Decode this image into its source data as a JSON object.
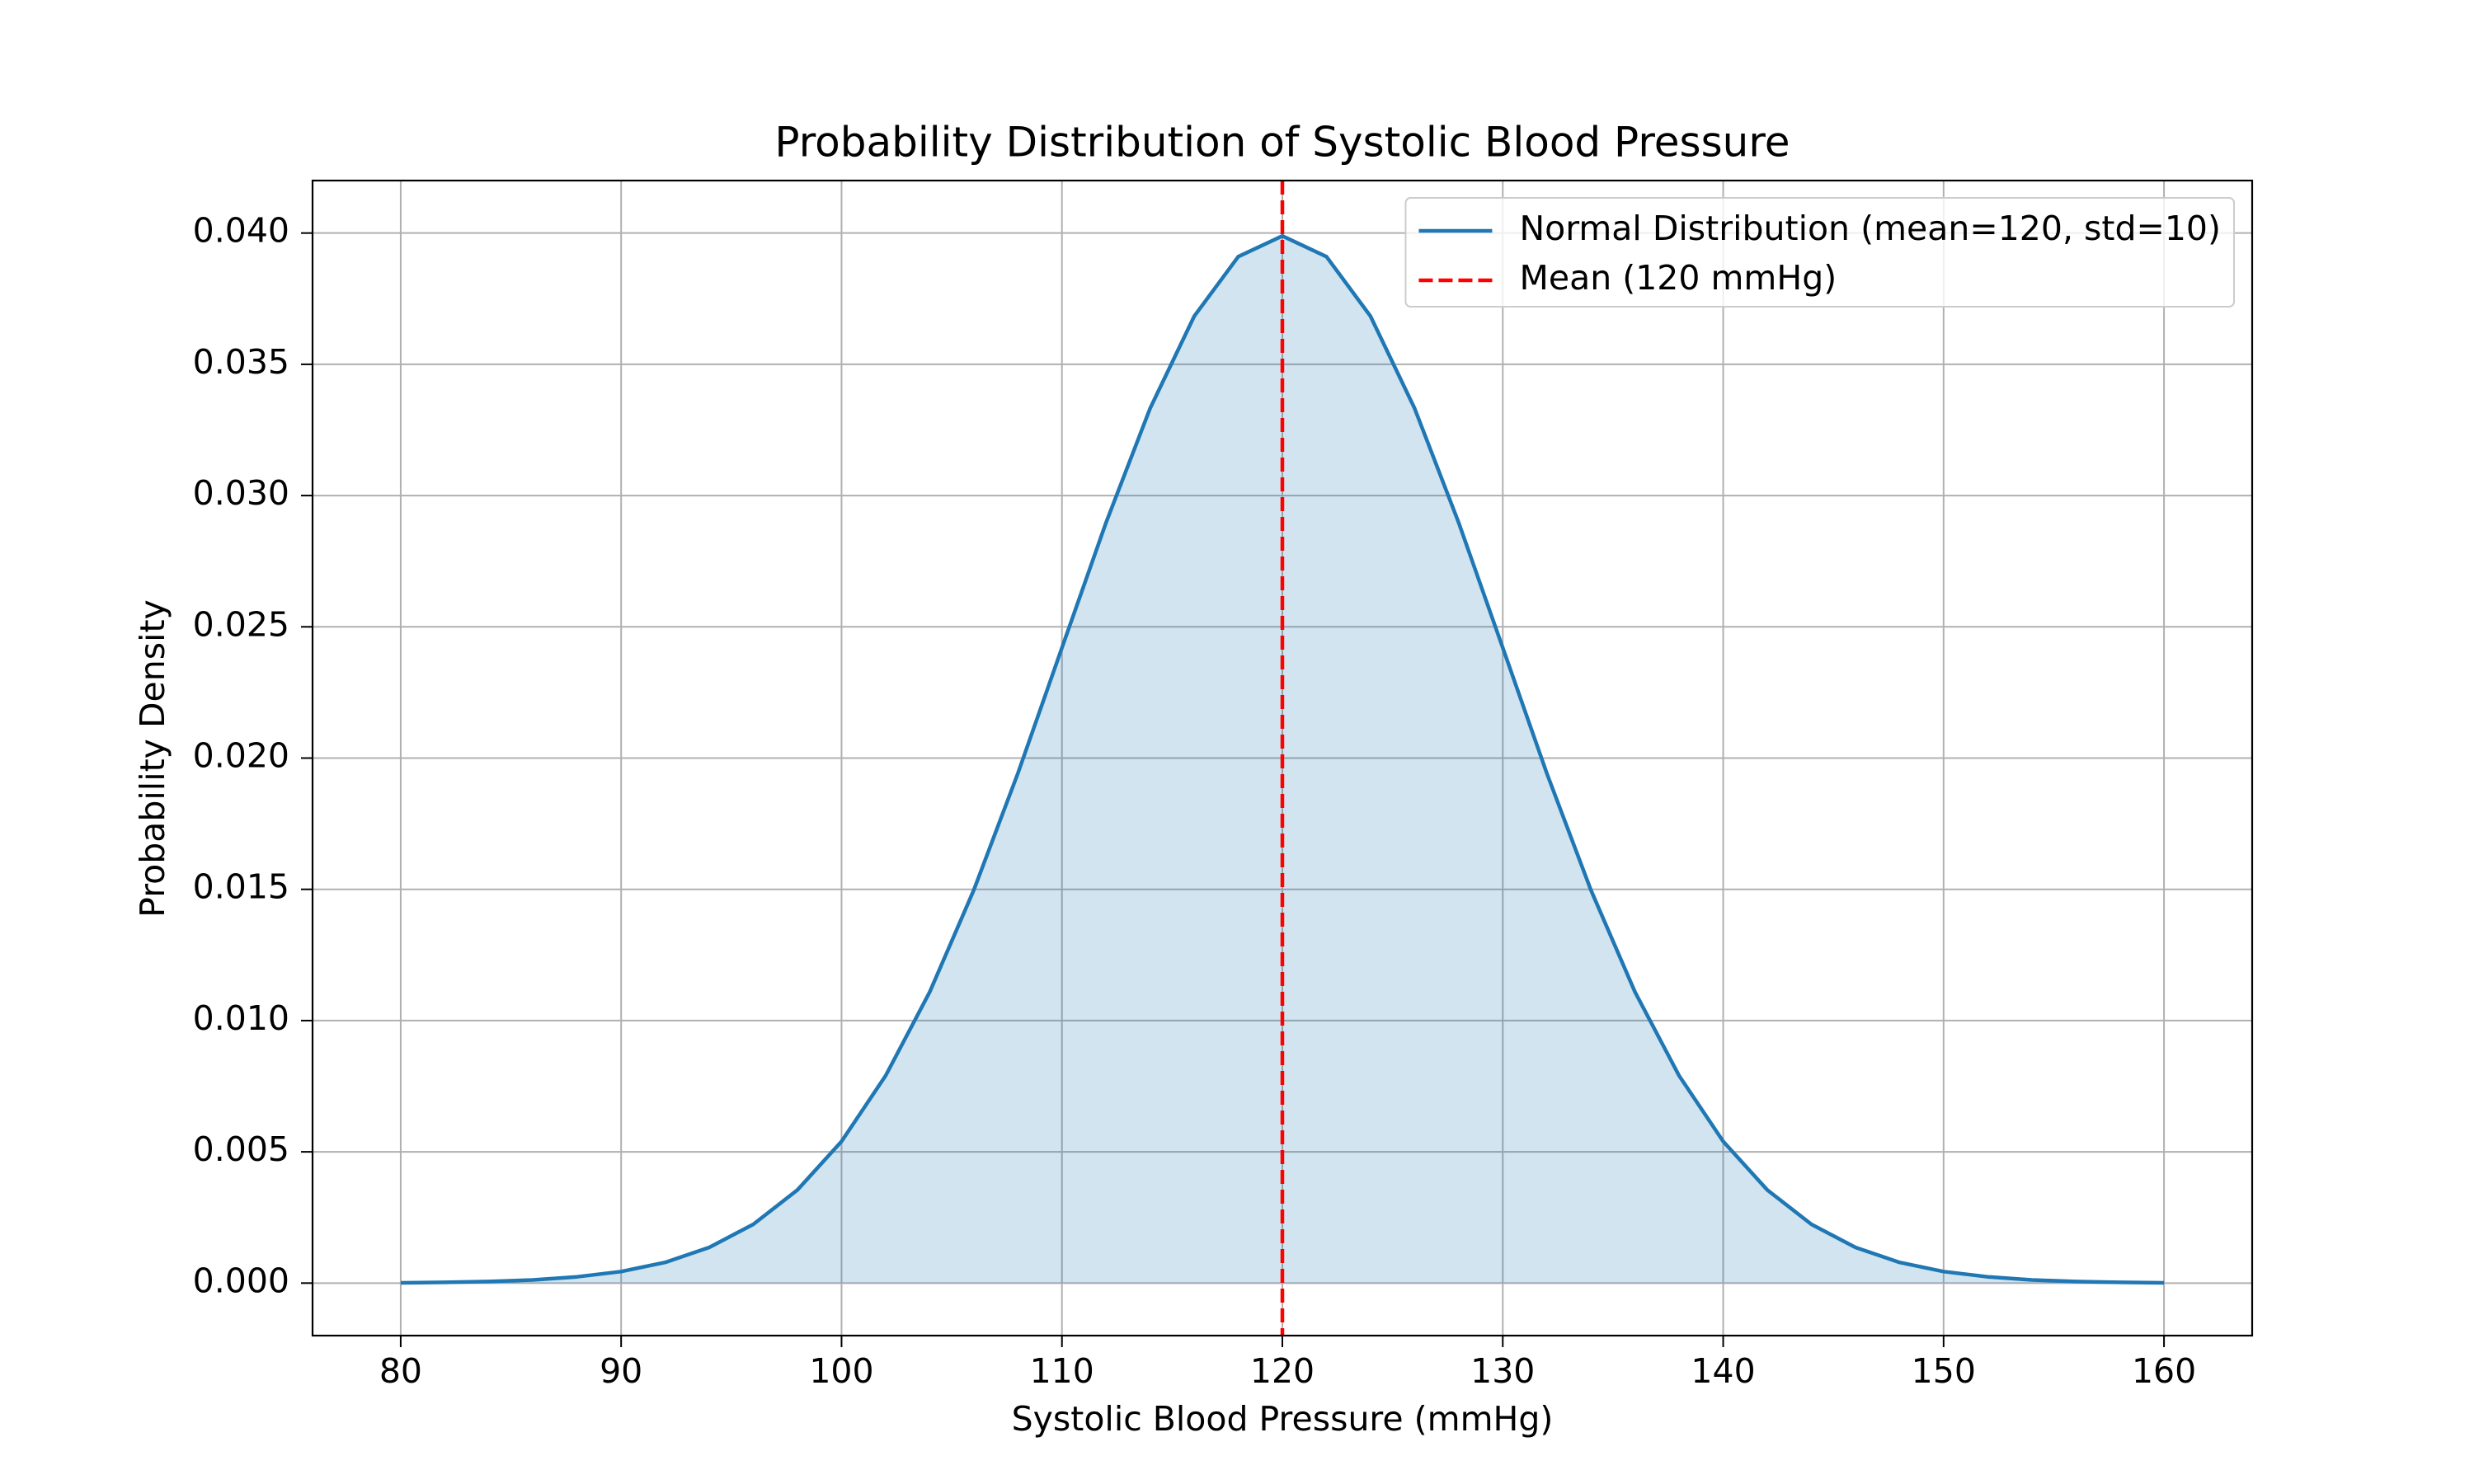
{
  "chart_data": {
    "type": "line",
    "title": "Probability Distribution of Systolic Blood Pressure",
    "x_label": "Systolic Blood Pressure (mmHg)",
    "y_label": "Probability Density",
    "series": [
      {
        "name": "Normal Distribution (mean=120, std=10)",
        "color": "#1f77b4",
        "fill": true,
        "x": [
          80,
          82,
          84,
          86,
          88,
          90,
          92,
          94,
          96,
          98,
          100,
          102,
          104,
          106,
          108,
          110,
          112,
          114,
          116,
          118,
          120,
          122,
          124,
          126,
          128,
          130,
          132,
          134,
          136,
          138,
          140,
          142,
          144,
          146,
          148,
          150,
          152,
          154,
          156,
          158,
          160
        ],
        "values": [
          1e-05,
          3e-05,
          6e-05,
          0.00012,
          0.00024,
          0.00044,
          0.00079,
          0.00136,
          0.00224,
          0.00355,
          0.0054,
          0.0079,
          0.01109,
          0.01497,
          0.01942,
          0.0242,
          0.02897,
          0.03332,
          0.03683,
          0.0391,
          0.03989,
          0.0391,
          0.03683,
          0.03332,
          0.02897,
          0.0242,
          0.01942,
          0.01497,
          0.01109,
          0.0079,
          0.0054,
          0.00355,
          0.00224,
          0.00136,
          0.00079,
          0.00044,
          0.00024,
          0.00012,
          6e-05,
          3e-05,
          1e-05
        ]
      }
    ],
    "vlines": [
      {
        "name": "Mean (120 mmHg)",
        "x": 120,
        "color": "#ff0000",
        "dashed": true
      }
    ],
    "xlim": [
      76,
      164
    ],
    "ylim": [
      -0.002,
      0.042
    ],
    "xticks": [
      80,
      90,
      100,
      110,
      120,
      130,
      140,
      150,
      160
    ],
    "yticks": [
      {
        "value": 0,
        "label": "0.000"
      },
      {
        "value": 0.005,
        "label": "0.005"
      },
      {
        "value": 0.01,
        "label": "0.010"
      },
      {
        "value": 0.015,
        "label": "0.015"
      },
      {
        "value": 0.02,
        "label": "0.020"
      },
      {
        "value": 0.025,
        "label": "0.025"
      },
      {
        "value": 0.03,
        "label": "0.030"
      },
      {
        "value": 0.035,
        "label": "0.035"
      },
      {
        "value": 0.04,
        "label": "0.040"
      }
    ],
    "grid": true,
    "legend": "upper right"
  }
}
